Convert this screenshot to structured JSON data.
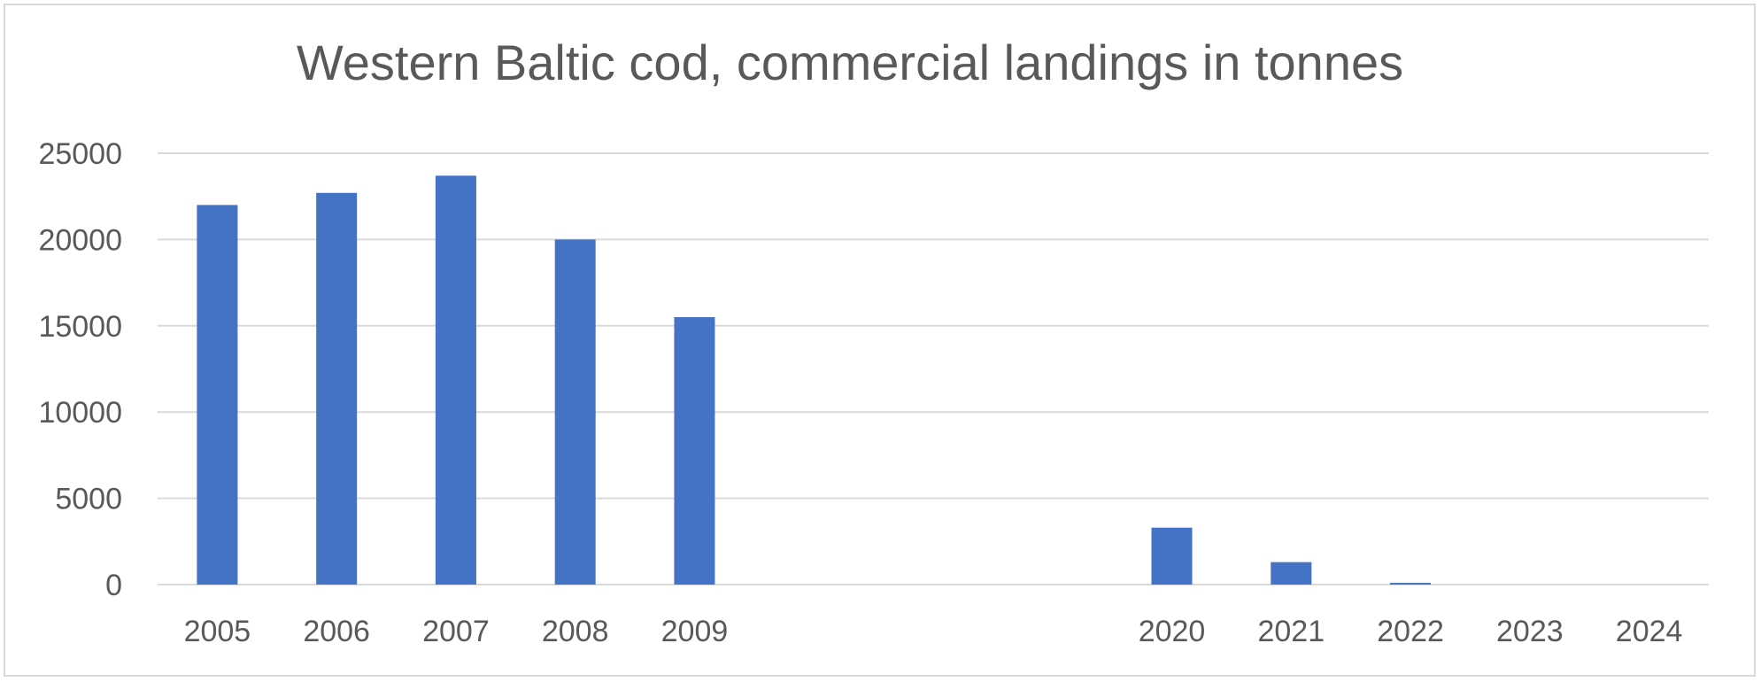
{
  "chart_data": {
    "type": "bar",
    "title": "Western Baltic cod, commercial landings in tonnes",
    "xlabel": "",
    "ylabel": "",
    "ylim": [
      0,
      25000
    ],
    "yticks": [
      0,
      5000,
      10000,
      15000,
      20000,
      25000
    ],
    "grid": true,
    "legend": "none",
    "bar_color": "#4472c4",
    "categories": [
      "2005",
      "2006",
      "2007",
      "2008",
      "2009",
      "",
      "",
      "",
      "2020",
      "2021",
      "2022",
      "2023",
      "2024"
    ],
    "values": [
      22000,
      22700,
      23700,
      20000,
      15500,
      null,
      null,
      null,
      3300,
      1300,
      100,
      0,
      0
    ]
  }
}
